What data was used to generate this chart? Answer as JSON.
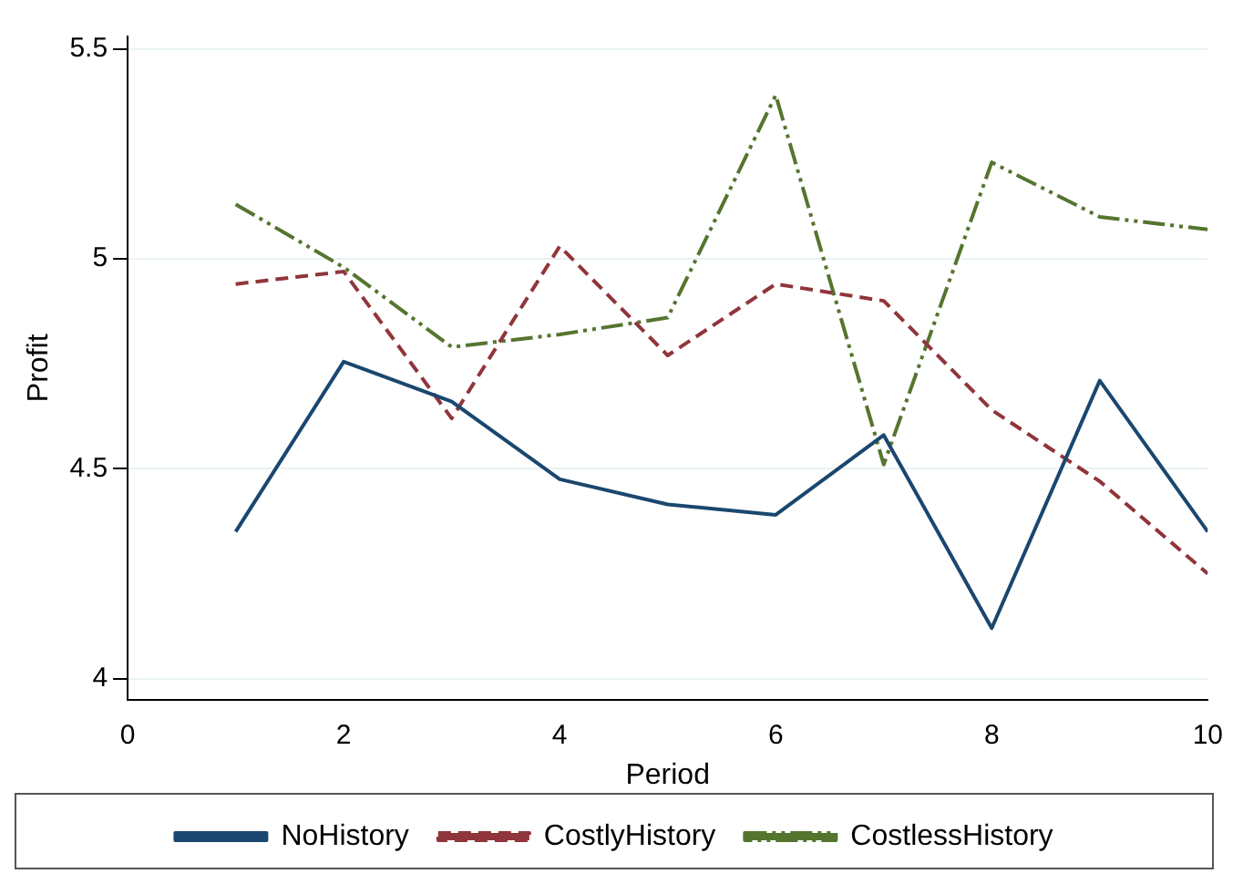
{
  "chart_data": {
    "type": "line",
    "xlabel": "Period",
    "ylabel": "Profit",
    "x": [
      1,
      2,
      3,
      4,
      5,
      6,
      7,
      8,
      9,
      10
    ],
    "series": [
      {
        "name": "NoHistory",
        "color": "#1a476f",
        "line_style": "solid",
        "values": [
          4.35,
          4.755,
          4.66,
          4.475,
          4.415,
          4.39,
          4.58,
          4.12,
          4.71,
          4.35
        ]
      },
      {
        "name": "CostlyHistory",
        "color": "#90353b",
        "line_style": "dashed",
        "values": [
          4.94,
          4.97,
          4.62,
          5.03,
          4.77,
          4.94,
          4.9,
          4.64,
          4.47,
          4.25
        ]
      },
      {
        "name": "CostlessHistory",
        "color": "#55752f",
        "line_style": "dashdot",
        "values": [
          5.13,
          4.98,
          4.79,
          4.82,
          4.86,
          5.39,
          4.51,
          5.23,
          5.1,
          5.07
        ]
      }
    ],
    "xlim": [
      0,
      10
    ],
    "xticks": [
      0,
      2,
      4,
      6,
      8,
      10
    ],
    "ylim": [
      3.95,
      5.53
    ],
    "yticks": [
      4,
      4.5,
      5,
      5.5
    ],
    "grid": "y",
    "legend": "bottom",
    "marker": "none"
  }
}
